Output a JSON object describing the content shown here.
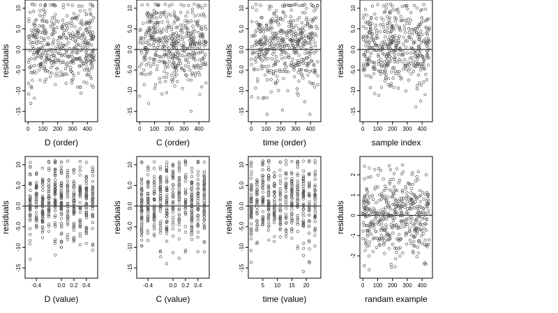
{
  "colors": {
    "point": "#555555",
    "axis": "#000000",
    "background": "#ffffff"
  },
  "chart_data": [
    {
      "type": "scatter",
      "xlabel": "D (order)",
      "ylabel": "residuals",
      "xlim": [
        -20,
        470
      ],
      "ylim": [
        -17.5,
        12
      ],
      "xticks": [
        0,
        100,
        200,
        300,
        400
      ],
      "xtick_labels": [
        "0",
        "100",
        "200",
        "300",
        "400"
      ],
      "yticks": [
        10,
        5,
        0,
        -5,
        -10,
        -15
      ],
      "ytick_labels": [
        "10",
        "5.0",
        "0.0",
        "-5.0",
        "-10",
        "-15"
      ],
      "zero_line": 0,
      "n_points": 450,
      "spread": [
        -16,
        11
      ],
      "pattern": "order"
    },
    {
      "type": "scatter",
      "xlabel": "C (order)",
      "ylabel": "residuals",
      "xlim": [
        -20,
        470
      ],
      "ylim": [
        -17.5,
        12
      ],
      "xticks": [
        0,
        100,
        200,
        300,
        400
      ],
      "xtick_labels": [
        "0",
        "100",
        "200",
        "300",
        "400"
      ],
      "yticks": [
        10,
        5,
        0,
        -5,
        -10,
        -15
      ],
      "ytick_labels": [
        "10",
        "5.0",
        "0.0",
        "-5.0",
        "-10",
        "-15"
      ],
      "zero_line": 0,
      "n_points": 450,
      "spread": [
        -16,
        11
      ],
      "pattern": "order"
    },
    {
      "type": "scatter",
      "xlabel": "time (order)",
      "ylabel": "residuals",
      "xlim": [
        -20,
        470
      ],
      "ylim": [
        -17.5,
        12
      ],
      "xticks": [
        0,
        100,
        200,
        300,
        400
      ],
      "xtick_labels": [
        "0",
        "100",
        "200",
        "300",
        "400"
      ],
      "yticks": [
        10,
        5,
        0,
        -5,
        -10,
        -15
      ],
      "ytick_labels": [
        "10",
        "5.0",
        "0.0",
        "-5.0",
        "-10",
        "-15"
      ],
      "zero_line": 0,
      "n_points": 450,
      "spread": [
        -16,
        11
      ],
      "pattern": "order"
    },
    {
      "type": "scatter",
      "xlabel": "sample index",
      "ylabel": "residuals",
      "xlim": [
        -20,
        470
      ],
      "ylim": [
        -17.5,
        12
      ],
      "xticks": [
        0,
        100,
        200,
        300,
        400
      ],
      "xtick_labels": [
        "0",
        "100",
        "200",
        "300",
        "400"
      ],
      "yticks": [
        10,
        5,
        0,
        -5,
        -10,
        -15
      ],
      "ytick_labels": [
        "10",
        "5.0",
        "0.0",
        "-5.0",
        "-10",
        "-15"
      ],
      "zero_line": 0,
      "n_points": 450,
      "spread": [
        -16,
        11
      ],
      "pattern": "order"
    },
    {
      "type": "scatter",
      "xlabel": "D (value)",
      "ylabel": "residuals",
      "xlim": [
        -0.58,
        0.58
      ],
      "ylim": [
        -17.5,
        12
      ],
      "xticks": [
        -0.4,
        0.0,
        0.2,
        0.4
      ],
      "xtick_labels": [
        "-0.4",
        "0.0",
        "0.2",
        "0.4"
      ],
      "yticks": [
        10,
        5,
        0,
        -5,
        -10,
        -15
      ],
      "ytick_labels": [
        "10",
        "5.0",
        "0.0",
        "-5.0",
        "-10",
        "-15"
      ],
      "zero_line": 0,
      "n_points": 450,
      "spread": [
        -16,
        11
      ],
      "pattern": "value",
      "x_levels": [
        -0.5,
        -0.4,
        -0.3,
        -0.2,
        -0.1,
        0.0,
        0.1,
        0.2,
        0.3,
        0.4,
        0.5
      ]
    },
    {
      "type": "scatter",
      "xlabel": "C (value)",
      "ylabel": "residuals",
      "xlim": [
        -0.58,
        0.58
      ],
      "ylim": [
        -17.5,
        12
      ],
      "xticks": [
        -0.4,
        0.0,
        0.2,
        0.4
      ],
      "xtick_labels": [
        "-0.4",
        "0.0",
        "0.2",
        "0.4"
      ],
      "yticks": [
        10,
        5,
        0,
        -5,
        -10,
        -15
      ],
      "ytick_labels": [
        "10",
        "5.0",
        "0.0",
        "-5.0",
        "-10",
        "-15"
      ],
      "zero_line": 0,
      "n_points": 450,
      "spread": [
        -16,
        11
      ],
      "pattern": "value",
      "x_levels": [
        -0.5,
        -0.4,
        -0.3,
        -0.2,
        -0.1,
        0.0,
        0.1,
        0.2,
        0.3,
        0.4,
        0.5
      ]
    },
    {
      "type": "scatter",
      "xlabel": "time (value)",
      "ylabel": "residuals",
      "xlim": [
        0,
        25
      ],
      "ylim": [
        -17.5,
        12
      ],
      "xticks": [
        5,
        10,
        15,
        20
      ],
      "xtick_labels": [
        "5",
        "10",
        "15",
        "20"
      ],
      "yticks": [
        10,
        5,
        0,
        -5,
        -10,
        -15
      ],
      "ytick_labels": [
        "10",
        "5.0",
        "0.0",
        "-5.0",
        "-10",
        "-15"
      ],
      "zero_line": 0,
      "n_points": 450,
      "spread": [
        -16,
        11
      ],
      "pattern": "value",
      "x_levels": [
        1,
        3,
        5,
        7,
        9,
        11,
        13,
        15,
        17,
        19,
        21,
        23
      ]
    },
    {
      "type": "scatter",
      "xlabel": "randam example",
      "ylabel": "residuals",
      "xlim": [
        -20,
        470
      ],
      "ylim": [
        -3.1,
        2.9
      ],
      "xticks": [
        0,
        100,
        200,
        300,
        400
      ],
      "xtick_labels": [
        "0",
        "100",
        "200",
        "300",
        "400"
      ],
      "yticks": [
        2,
        1,
        0,
        -1,
        -2
      ],
      "ytick_labels": [
        "2",
        "1",
        "0",
        "-1",
        "-2"
      ],
      "zero_line": 0,
      "n_points": 450,
      "spread": [
        -2.7,
        2.5
      ],
      "pattern": "random"
    }
  ]
}
